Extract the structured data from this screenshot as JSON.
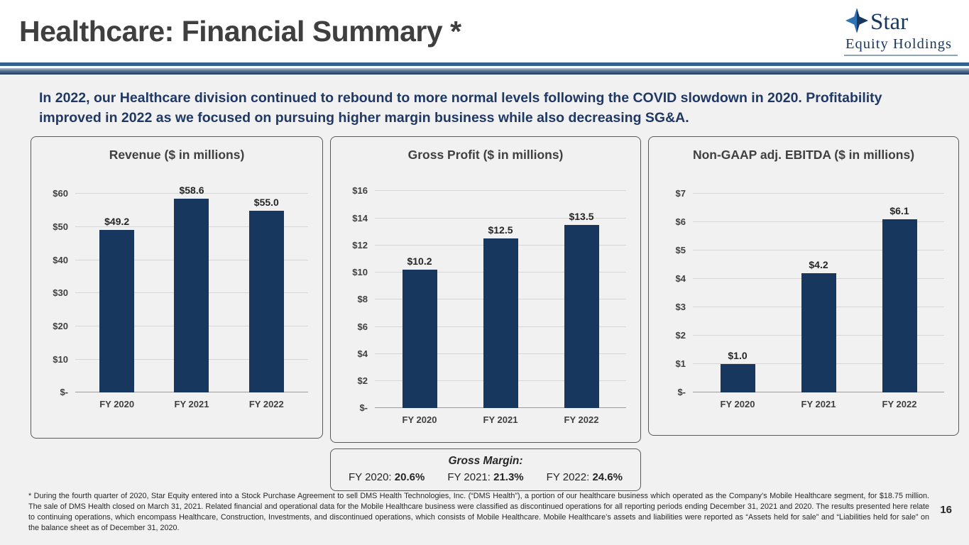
{
  "slide": {
    "title": "Healthcare: Financial Summary *",
    "headline": "In 2022, our Healthcare division continued to rebound to more normal levels following the COVID slowdown in 2020. Profitability improved in 2022 as we focused on pursuing higher margin business while also decreasing SG&A.",
    "footnote": "* During the fourth quarter of 2020, Star Equity entered into a Stock Purchase Agreement to sell DMS Health Technologies, Inc. (“DMS Health”), a portion of our healthcare business which operated as the Company’s Mobile Healthcare segment, for $18.75 million. The sale of DMS Health closed on March 31, 2021. Related financial and operational data for the Mobile Healthcare business were classified as discontinued operations for all reporting periods ending December 31, 2021 and 2020. The results presented here relate to continuing operations, which encompass Healthcare, Construction, Investments, and discontinued operations, which consists of Mobile Healthcare. Mobile Healthcare’s assets and liabilities were reported as “Assets held for sale” and “Liabilities held for sale” on the balance sheet as of December 31, 2020.",
    "page_number": "16"
  },
  "logo": {
    "line1": "Star",
    "line2": "Equity Holdings",
    "color": "#17375E"
  },
  "colors": {
    "bar": "#17375E",
    "headline": "#1F3864",
    "divider": "#35618E"
  },
  "chart_data": [
    {
      "type": "bar",
      "title": "Revenue ($ in millions)",
      "categories": [
        "FY 2020",
        "FY 2021",
        "FY 2022"
      ],
      "values": [
        49.2,
        58.6,
        55.0
      ],
      "data_labels": [
        "$49.2",
        "$58.6",
        "$55.0"
      ],
      "ylim": [
        0,
        60
      ],
      "ytick_step": 10,
      "yticks": [
        "$-",
        "$10",
        "$20",
        "$30",
        "$40",
        "$50",
        "$60"
      ],
      "grid": true,
      "legend": "none",
      "bar_color": "#17375E"
    },
    {
      "type": "bar",
      "title": "Gross Profit ($ in millions)",
      "categories": [
        "FY 2020",
        "FY 2021",
        "FY 2022"
      ],
      "values": [
        10.2,
        12.5,
        13.5
      ],
      "data_labels": [
        "$10.2",
        "$12.5",
        "$13.5"
      ],
      "ylim": [
        0,
        16
      ],
      "ytick_step": 2,
      "yticks": [
        "$-",
        "$2",
        "$4",
        "$6",
        "$8",
        "$10",
        "$12",
        "$14",
        "$16"
      ],
      "grid": true,
      "legend": "none",
      "bar_color": "#17375E"
    },
    {
      "type": "bar",
      "title": "Non-GAAP adj. EBITDA ($ in millions)",
      "categories": [
        "FY 2020",
        "FY 2021",
        "FY 2022"
      ],
      "values": [
        1.0,
        4.2,
        6.1
      ],
      "data_labels": [
        "$1.0",
        "$4.2",
        "$6.1"
      ],
      "ylim": [
        0,
        7
      ],
      "ytick_step": 1,
      "yticks": [
        "$-",
        "$1",
        "$2",
        "$3",
        "$4",
        "$5",
        "$6",
        "$7"
      ],
      "grid": true,
      "legend": "none",
      "bar_color": "#17375E"
    }
  ],
  "gross_margin": {
    "title": "Gross Margin:",
    "items": [
      {
        "label": "FY 2020:",
        "value": "20.6%"
      },
      {
        "label": "FY 2021:",
        "value": "21.3%"
      },
      {
        "label": "FY 2022:",
        "value": "24.6%"
      }
    ]
  }
}
